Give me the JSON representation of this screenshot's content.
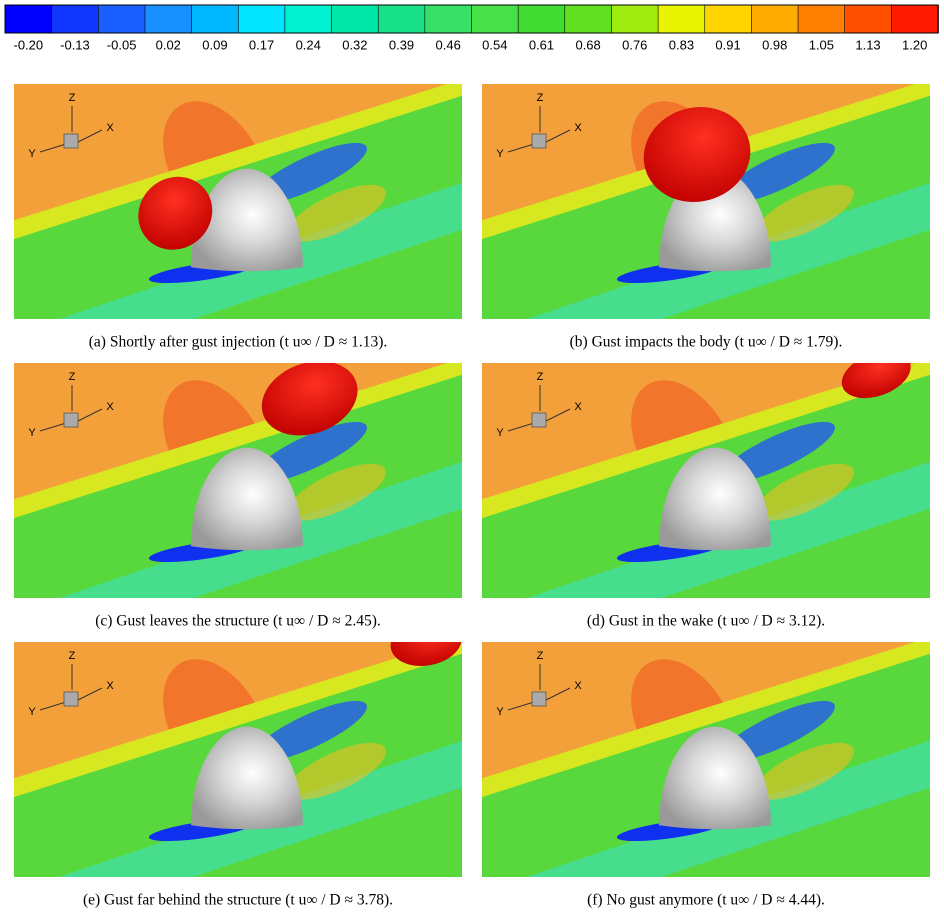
{
  "colorbar": {
    "labels": [
      "-0.20",
      "-0.13",
      "-0.05",
      "0.02",
      "0.09",
      "0.17",
      "0.24",
      "0.32",
      "0.39",
      "0.46",
      "0.54",
      "0.61",
      "0.68",
      "0.76",
      "0.83",
      "0.91",
      "0.98",
      "1.05",
      "1.13",
      "1.20"
    ],
    "colors": [
      "#0000ff",
      "#1238ff",
      "#1a60ff",
      "#1890ff",
      "#00b8ff",
      "#00e4ff",
      "#00f0d0",
      "#00e8a8",
      "#18e088",
      "#38e068",
      "#48e048",
      "#40dc30",
      "#60e020",
      "#a0ec10",
      "#e8f400",
      "#ffd400",
      "#ffac00",
      "#ff8000",
      "#ff5000",
      "#ff1a00"
    ]
  },
  "panels": [
    {
      "caption": "(a) Shortly after gust injection (t u∞ / D ≈ 1.13).",
      "axes": {
        "z": "Z",
        "y": "Y",
        "x": "X"
      }
    },
    {
      "caption": "(b) Gust impacts the body (t u∞ / D ≈ 1.79).",
      "axes": {
        "z": "Z",
        "y": "Y",
        "x": "X"
      }
    },
    {
      "caption": "(c) Gust leaves the structure (t u∞ / D ≈ 2.45).",
      "axes": {
        "z": "Z",
        "y": "Y",
        "x": "X"
      }
    },
    {
      "caption": "(d) Gust in the wake (t u∞ / D ≈ 3.12).",
      "axes": {
        "z": "Z",
        "y": "Y",
        "x": "X"
      }
    },
    {
      "caption": "(e) Gust far behind the structure (t u∞ / D ≈ 3.78).",
      "axes": {
        "z": "Z",
        "y": "Y",
        "x": "X"
      }
    },
    {
      "caption": "(f) No gust anymore (t u∞ / D ≈ 4.44).",
      "axes": {
        "z": "Z",
        "y": "Y",
        "x": "X"
      }
    }
  ]
}
